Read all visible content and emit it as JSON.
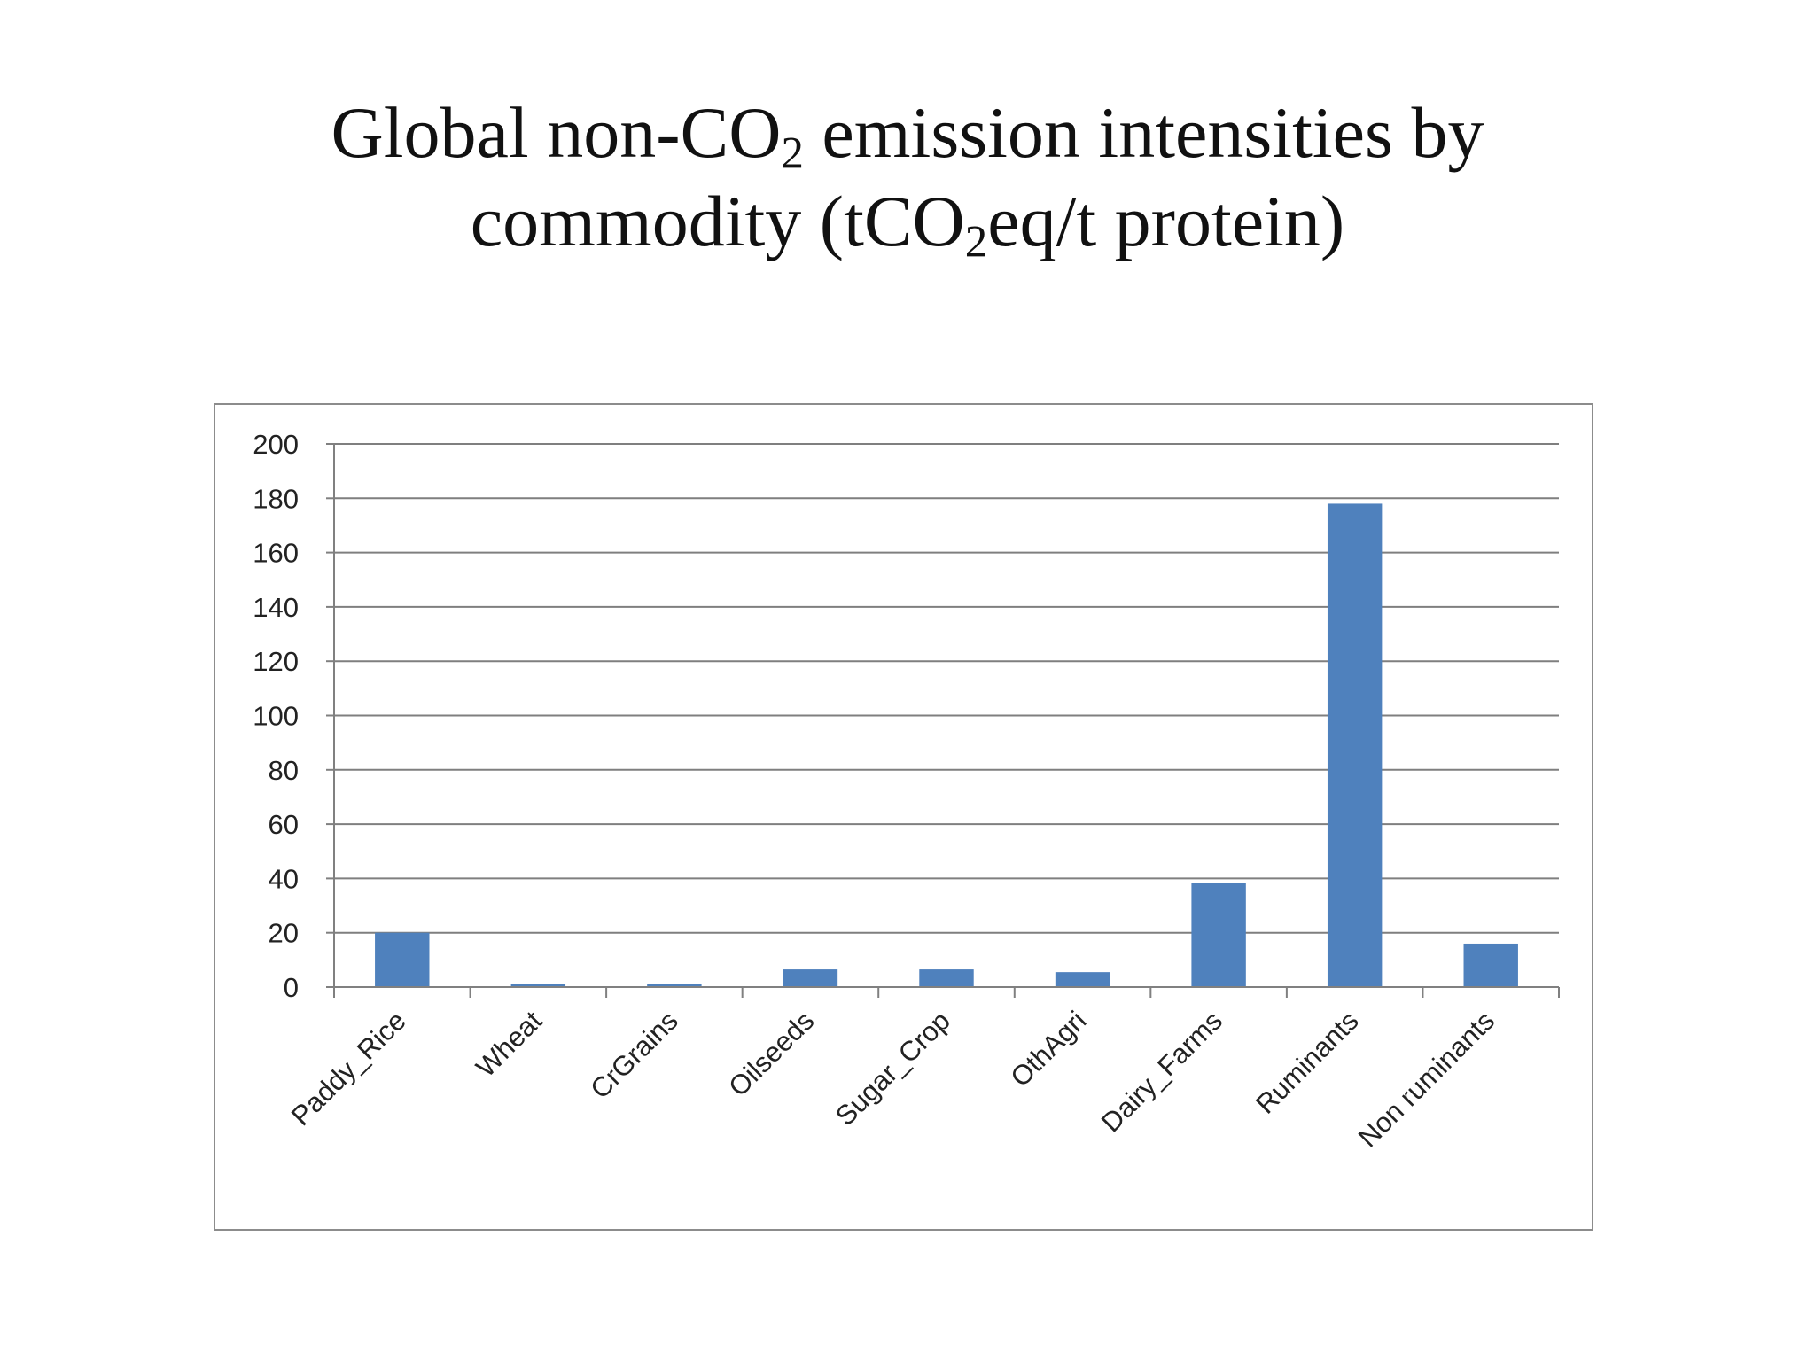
{
  "title": {
    "line1_a": "Global non-CO",
    "line1_sub": "2",
    "line1_b": " emission intensities by",
    "line2_a": "commodity (tCO",
    "line2_sub": "2",
    "line2_b": "eq/t protein)"
  },
  "colors": {
    "bar": "#4f81bd",
    "grid": "#7f7f7f",
    "axis": "#808080",
    "text": "#222222"
  },
  "chart_data": {
    "type": "bar",
    "categories": [
      "Paddy_Rice",
      "Wheat",
      "CrGrains",
      "Oilseeds",
      "Sugar_Crop",
      "OthAgri",
      "Dairy_Farms",
      "Ruminants",
      "Non ruminants"
    ],
    "values": [
      20,
      1,
      1,
      6.5,
      6.5,
      5.5,
      38.5,
      178,
      16
    ],
    "yticks": [
      0,
      20,
      40,
      60,
      80,
      100,
      120,
      140,
      160,
      180,
      200
    ],
    "ylim": [
      0,
      200
    ],
    "grid": true,
    "legend": "none"
  }
}
